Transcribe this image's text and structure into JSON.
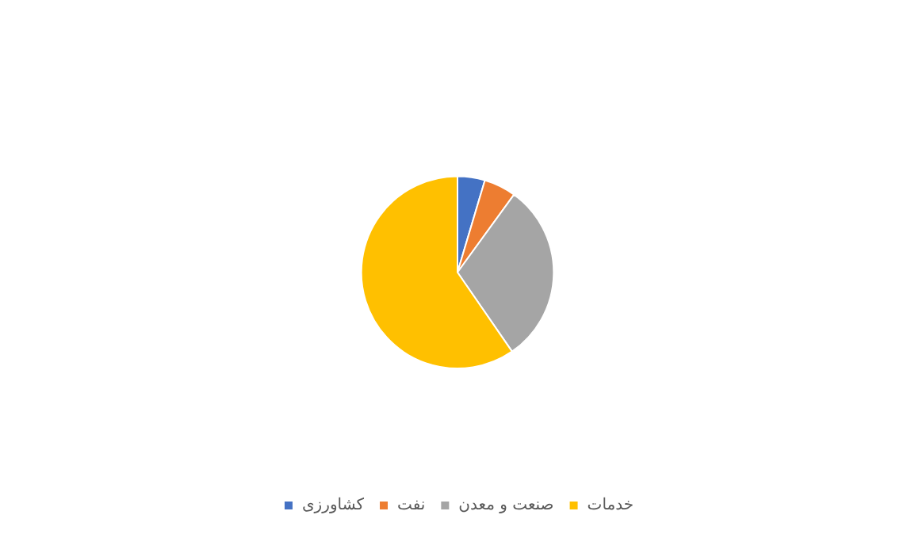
{
  "chart_data": {
    "type": "pie",
    "categories": [
      "کشاورزی",
      "نفت",
      "صنعت و معدن",
      "خدمات"
    ],
    "values": [
      4.6,
      5.4,
      30.4,
      59.6
    ],
    "colors": [
      "#4472c4",
      "#ed7d31",
      "#a5a5a5",
      "#ffc000"
    ],
    "legend": "bottom"
  }
}
